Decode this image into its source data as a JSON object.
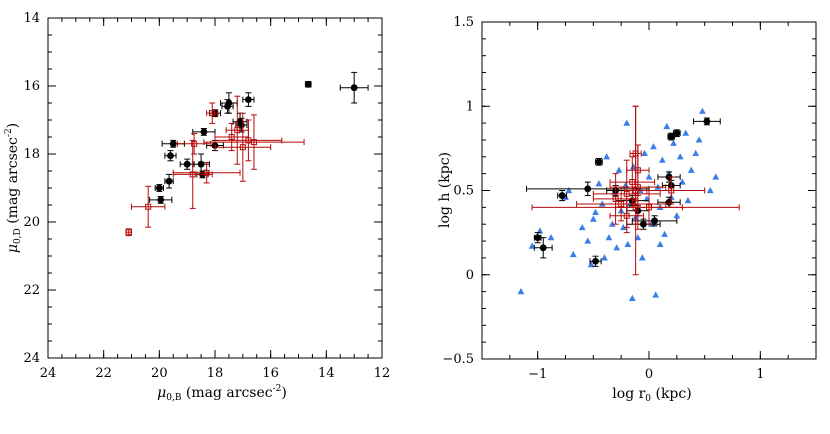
{
  "colors": {
    "black": "#000000",
    "red": "#b40a0a",
    "blue": "#3a7fe8",
    "frame": "#000000"
  },
  "chart_data": [
    {
      "type": "scatter",
      "panel": "left",
      "xlabel": "μ0,B (mag arcsec⁻²)",
      "xlabel_main": "μ",
      "xlabel_sub": "0,B",
      "xlabel_rest": " (mag arcsec",
      "xlabel_sup": "-2",
      "xlabel_end": ")",
      "ylabel": "μ0,D (mag arcsec⁻²)",
      "ylabel_main": "μ",
      "ylabel_sub": "0,D",
      "ylabel_rest": " (mag arcsec",
      "ylabel_sup": "-2",
      "ylabel_end": ")",
      "xlim": [
        24,
        12
      ],
      "ylim": [
        24,
        14
      ],
      "xticks": [
        24,
        22,
        20,
        18,
        16,
        14,
        12
      ],
      "yticks": [
        24,
        22,
        20,
        18,
        16,
        14
      ],
      "xtick_labels": [
        "24",
        "22",
        "20",
        "18",
        "16",
        "14",
        "12"
      ],
      "ytick_labels": [
        "24",
        "22",
        "20",
        "18",
        "16",
        "14"
      ],
      "series": [
        {
          "name": "black points",
          "color": "black",
          "marker": "circle",
          "points": [
            {
              "x": 13.0,
              "y": 16.05,
              "xerr": 0.5,
              "yerr": 0.45
            },
            {
              "x": 14.65,
              "y": 15.95,
              "xerr": 0.1,
              "yerr": 0.08
            },
            {
              "x": 16.8,
              "y": 16.4,
              "xerr": 0.2,
              "yerr": 0.2
            },
            {
              "x": 17.5,
              "y": 16.5,
              "xerr": 0.3,
              "yerr": 0.3
            },
            {
              "x": 17.55,
              "y": 16.6,
              "xerr": 0.2,
              "yerr": 0.2
            },
            {
              "x": 17.1,
              "y": 17.05,
              "xerr": 0.25,
              "yerr": 0.25
            },
            {
              "x": 17.05,
              "y": 17.15,
              "xerr": 0.2,
              "yerr": 0.2
            },
            {
              "x": 18.0,
              "y": 16.8,
              "xerr": 0.2,
              "yerr": 0.1
            },
            {
              "x": 18.4,
              "y": 17.35,
              "xerr": 0.4,
              "yerr": 0.1
            },
            {
              "x": 19.5,
              "y": 17.7,
              "xerr": 0.4,
              "yerr": 0.1
            },
            {
              "x": 18.0,
              "y": 17.75,
              "xerr": 0.3,
              "yerr": 0.15
            },
            {
              "x": 19.6,
              "y": 18.05,
              "xerr": 0.2,
              "yerr": 0.15
            },
            {
              "x": 19.0,
              "y": 18.3,
              "xerr": 0.25,
              "yerr": 0.15
            },
            {
              "x": 18.5,
              "y": 18.3,
              "xerr": 0.3,
              "yerr": 0.3
            },
            {
              "x": 18.45,
              "y": 18.6,
              "xerr": 0.2,
              "yerr": 0.1
            },
            {
              "x": 19.65,
              "y": 18.8,
              "xerr": 0.15,
              "yerr": 0.2
            },
            {
              "x": 20.0,
              "y": 19.0,
              "xerr": 0.15,
              "yerr": 0.1
            },
            {
              "x": 19.95,
              "y": 19.35,
              "xerr": 0.4,
              "yerr": 0.1
            }
          ]
        },
        {
          "name": "red points",
          "color": "red",
          "marker": "square",
          "points": [
            {
              "x": 17.2,
              "y": 17.3,
              "xerr": 0.4,
              "yerr": 1.0
            },
            {
              "x": 16.8,
              "y": 17.6,
              "xerr": 1.2,
              "yerr": 0.6
            },
            {
              "x": 16.6,
              "y": 17.65,
              "xerr": 1.8,
              "yerr": 0.8
            },
            {
              "x": 17.0,
              "y": 17.8,
              "xerr": 1.0,
              "yerr": 1.0
            },
            {
              "x": 17.4,
              "y": 17.5,
              "xerr": 0.6,
              "yerr": 0.4
            },
            {
              "x": 18.1,
              "y": 16.8,
              "xerr": 0.2,
              "yerr": 0.3
            },
            {
              "x": 18.3,
              "y": 18.55,
              "xerr": 1.2,
              "yerr": 0.3
            },
            {
              "x": 18.8,
              "y": 18.6,
              "xerr": 0.7,
              "yerr": 1.0
            },
            {
              "x": 18.75,
              "y": 17.7,
              "xerr": 0.6,
              "yerr": 0.3
            },
            {
              "x": 20.4,
              "y": 19.55,
              "xerr": 0.6,
              "yerr": 0.6
            },
            {
              "x": 21.1,
              "y": 20.3,
              "xerr": 0.1,
              "yerr": 0.1
            }
          ]
        }
      ]
    },
    {
      "type": "scatter",
      "panel": "right",
      "xlabel": "log r0 (kpc)",
      "xlabel_main": "log r",
      "xlabel_sub": "0",
      "xlabel_rest": " (kpc)",
      "ylabel": "log h (kpc)",
      "xlim": [
        -1.5,
        1.5
      ],
      "ylim": [
        -0.5,
        1.5
      ],
      "xticks": [
        -1,
        0,
        1
      ],
      "yticks": [
        -0.5,
        0,
        0.5,
        1,
        1.5
      ],
      "xtick_labels": [
        "−1",
        "0",
        "1"
      ],
      "ytick_labels": [
        "−0.5",
        "0",
        "0.5",
        "1",
        "1.5"
      ],
      "series": [
        {
          "name": "blue triangles",
          "color": "blue",
          "marker": "triangle",
          "points": [
            {
              "x": -1.15,
              "y": -0.1
            },
            {
              "x": -1.05,
              "y": 0.17
            },
            {
              "x": -0.98,
              "y": 0.26
            },
            {
              "x": -0.88,
              "y": 0.22
            },
            {
              "x": -0.75,
              "y": 0.46
            },
            {
              "x": -0.72,
              "y": 0.5
            },
            {
              "x": -0.68,
              "y": 0.12
            },
            {
              "x": -0.6,
              "y": 0.28
            },
            {
              "x": -0.55,
              "y": 0.2
            },
            {
              "x": -0.52,
              "y": 0.06
            },
            {
              "x": -0.48,
              "y": 0.37
            },
            {
              "x": -0.45,
              "y": 0.54
            },
            {
              "x": -0.42,
              "y": 0.42
            },
            {
              "x": -0.4,
              "y": 0.1
            },
            {
              "x": -0.38,
              "y": 0.7
            },
            {
              "x": -0.36,
              "y": 0.22
            },
            {
              "x": -0.33,
              "y": 0.3
            },
            {
              "x": -0.31,
              "y": 0.49
            },
            {
              "x": -0.29,
              "y": 0.16
            },
            {
              "x": -0.27,
              "y": 0.62
            },
            {
              "x": -0.25,
              "y": 0.38
            },
            {
              "x": -0.23,
              "y": 0.28
            },
            {
              "x": -0.21,
              "y": 0.53
            },
            {
              "x": -0.19,
              "y": 0.18
            },
            {
              "x": -0.17,
              "y": 0.42
            },
            {
              "x": -0.15,
              "y": -0.14
            },
            {
              "x": -0.14,
              "y": 0.64
            },
            {
              "x": -0.12,
              "y": 0.34
            },
            {
              "x": -0.1,
              "y": 0.22
            },
            {
              "x": -0.08,
              "y": 0.5
            },
            {
              "x": -0.06,
              "y": 0.1
            },
            {
              "x": -0.04,
              "y": 0.72
            },
            {
              "x": -0.02,
              "y": 0.45
            },
            {
              "x": 0.0,
              "y": 0.58
            },
            {
              "x": 0.02,
              "y": 0.3
            },
            {
              "x": 0.04,
              "y": 0.76
            },
            {
              "x": 0.06,
              "y": -0.12
            },
            {
              "x": 0.08,
              "y": 0.52
            },
            {
              "x": 0.1,
              "y": 0.4
            },
            {
              "x": 0.12,
              "y": 0.68
            },
            {
              "x": 0.14,
              "y": 0.24
            },
            {
              "x": 0.16,
              "y": 0.88
            },
            {
              "x": 0.18,
              "y": 0.6
            },
            {
              "x": 0.2,
              "y": 0.46
            },
            {
              "x": 0.22,
              "y": 0.78
            },
            {
              "x": 0.25,
              "y": 0.35
            },
            {
              "x": 0.28,
              "y": 0.7
            },
            {
              "x": 0.3,
              "y": 0.55
            },
            {
              "x": 0.33,
              "y": 0.84
            },
            {
              "x": 0.35,
              "y": 0.44
            },
            {
              "x": 0.38,
              "y": 0.62
            },
            {
              "x": 0.42,
              "y": 0.72
            },
            {
              "x": 0.45,
              "y": 0.8
            },
            {
              "x": 0.48,
              "y": 0.97
            },
            {
              "x": 0.55,
              "y": 0.5
            },
            {
              "x": 0.6,
              "y": 0.58
            },
            {
              "x": -0.2,
              "y": 0.9
            },
            {
              "x": -0.5,
              "y": 0.33
            },
            {
              "x": 0.1,
              "y": 0.18
            }
          ]
        },
        {
          "name": "black points",
          "color": "black",
          "marker": "circle",
          "points": [
            {
              "x": -1.0,
              "y": 0.22,
              "xerr": 0.03,
              "yerr": 0.03
            },
            {
              "x": -0.95,
              "y": 0.16,
              "xerr": 0.08,
              "yerr": 0.06
            },
            {
              "x": -0.78,
              "y": 0.47,
              "xerr": 0.04,
              "yerr": 0.03
            },
            {
              "x": -0.55,
              "y": 0.51,
              "xerr": 0.55,
              "yerr": 0.04
            },
            {
              "x": -0.45,
              "y": 0.67,
              "xerr": 0.03,
              "yerr": 0.02
            },
            {
              "x": -0.48,
              "y": 0.08,
              "xerr": 0.05,
              "yerr": 0.03
            },
            {
              "x": -0.3,
              "y": 0.5,
              "xerr": 0.08,
              "yerr": 0.03
            },
            {
              "x": -0.15,
              "y": 0.44,
              "xerr": 0.15,
              "yerr": 0.03
            },
            {
              "x": -0.1,
              "y": 0.38,
              "xerr": 0.1,
              "yerr": 0.03
            },
            {
              "x": -0.05,
              "y": 0.3,
              "xerr": 0.15,
              "yerr": 0.03
            },
            {
              "x": 0.05,
              "y": 0.32,
              "xerr": 0.2,
              "yerr": 0.03
            },
            {
              "x": 0.18,
              "y": 0.58,
              "xerr": 0.1,
              "yerr": 0.03
            },
            {
              "x": 0.2,
              "y": 0.53,
              "xerr": 0.08,
              "yerr": 0.03
            },
            {
              "x": 0.18,
              "y": 0.43,
              "xerr": 0.1,
              "yerr": 0.03
            },
            {
              "x": 0.2,
              "y": 0.82,
              "xerr": 0.03,
              "yerr": 0.02
            },
            {
              "x": 0.25,
              "y": 0.84,
              "xerr": 0.03,
              "yerr": 0.02
            },
            {
              "x": 0.52,
              "y": 0.91,
              "xerr": 0.12,
              "yerr": 0.02
            }
          ]
        },
        {
          "name": "red points",
          "color": "red",
          "marker": "square",
          "points": [
            {
              "x": -0.15,
              "y": 0.55,
              "xerr": 0.2,
              "yerr": 0.15
            },
            {
              "x": -0.2,
              "y": 0.48,
              "xerr": 0.3,
              "yerr": 0.2
            },
            {
              "x": -0.1,
              "y": 0.52,
              "xerr": 0.25,
              "yerr": 0.25
            },
            {
              "x": -0.25,
              "y": 0.42,
              "xerr": 0.4,
              "yerr": 0.1
            },
            {
              "x": -0.12,
              "y": 0.4,
              "xerr": 0.93,
              "yerr": 0.1
            },
            {
              "x": -0.3,
              "y": 0.45,
              "xerr": 0.2,
              "yerr": 0.15
            },
            {
              "x": -0.2,
              "y": 0.35,
              "xerr": 0.15,
              "yerr": 0.1
            },
            {
              "x": -0.1,
              "y": 0.62,
              "xerr": 0.1,
              "yerr": 0.15
            },
            {
              "x": -0.12,
              "y": 0.5,
              "xerr": 0.1,
              "yerr": 0.5
            },
            {
              "x": -0.12,
              "y": 0.72,
              "xerr": 0.05,
              "yerr": 0.28
            },
            {
              "x": 0.2,
              "y": 0.5,
              "xerr": 0.3,
              "yerr": 0.08
            },
            {
              "x": 0.0,
              "y": 0.4,
              "xerr": 0.3,
              "yerr": 0.1
            }
          ]
        }
      ]
    }
  ]
}
